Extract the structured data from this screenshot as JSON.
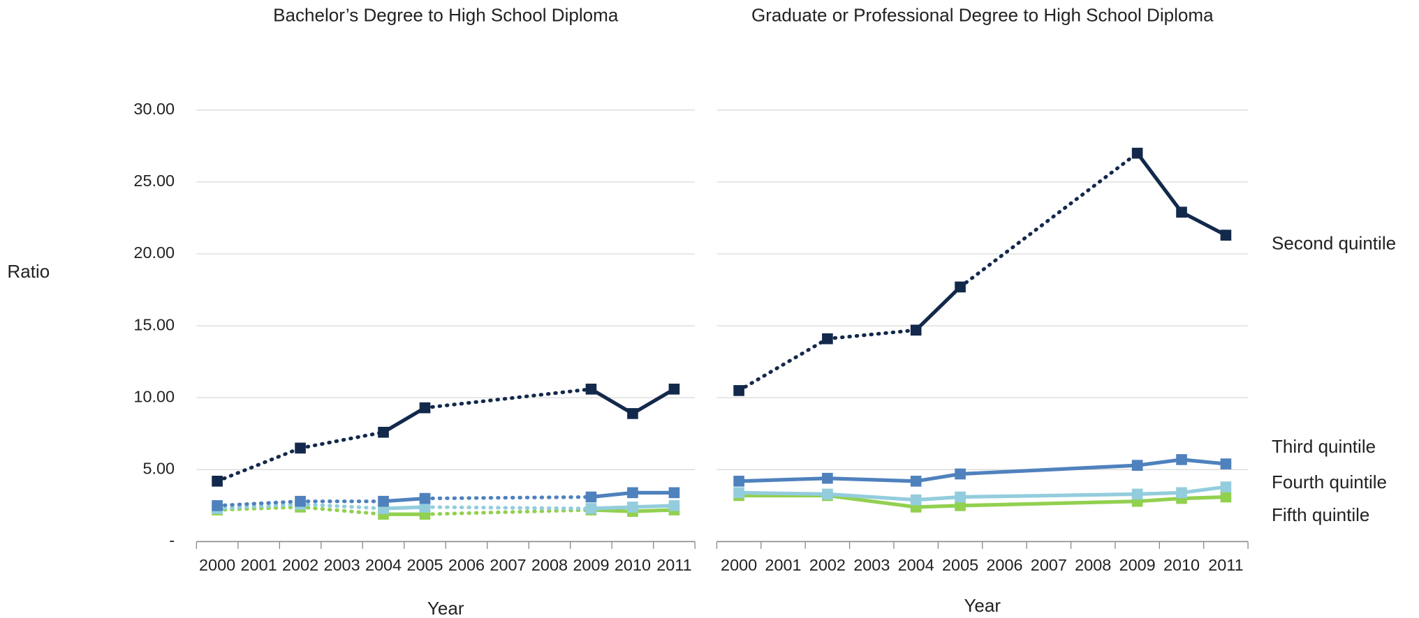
{
  "chart_data": [
    {
      "type": "line",
      "title": "Bachelor’s Degree to High School Diploma",
      "x_label": "Year",
      "y_label": "Ratio",
      "x": [
        2000,
        2002,
        2004,
        2005,
        2009,
        2010,
        2011
      ],
      "xlim": [
        1999.5,
        2011.5
      ],
      "xticks": [
        2000,
        2001,
        2002,
        2003,
        2004,
        2005,
        2006,
        2007,
        2008,
        2009,
        2010,
        2011
      ],
      "ylim": [
        0,
        30
      ],
      "yticks": [
        {
          "value": 0,
          "label": "-"
        },
        {
          "value": 5,
          "label": "5.00"
        },
        {
          "value": 10,
          "label": "10.00"
        },
        {
          "value": 15,
          "label": "15.00"
        },
        {
          "value": 20,
          "label": "20.00"
        },
        {
          "value": 25,
          "label": "25.00"
        },
        {
          "value": 30,
          "label": "30.00"
        }
      ],
      "grid": true,
      "gap_style": "dotted",
      "series": [
        {
          "color": "#13294b",
          "values": [
            4.2,
            6.5,
            7.6,
            9.3,
            10.6,
            8.9,
            10.6
          ]
        },
        {
          "color": "#4f81bd",
          "values": [
            2.5,
            2.8,
            2.8,
            3.0,
            3.1,
            3.4,
            3.4
          ]
        },
        {
          "color": "#93cddd",
          "values": [
            2.3,
            2.6,
            2.3,
            2.4,
            2.3,
            2.4,
            2.5
          ]
        },
        {
          "color": "#92d050",
          "values": [
            2.2,
            2.4,
            1.9,
            1.9,
            2.2,
            2.1,
            2.2
          ]
        }
      ]
    },
    {
      "type": "line",
      "title": "Graduate or Professional Degree to High School Diploma",
      "x_label": "Year",
      "x": [
        2000,
        2002,
        2004,
        2005,
        2009,
        2010,
        2011
      ],
      "xlim": [
        1999.5,
        2011.5
      ],
      "xticks": [
        2000,
        2001,
        2002,
        2003,
        2004,
        2005,
        2006,
        2007,
        2008,
        2009,
        2010,
        2011
      ],
      "ylim": [
        0,
        30
      ],
      "yticks": [
        0,
        5,
        10,
        15,
        20,
        25,
        30
      ],
      "grid": true,
      "series": [
        {
          "name": "Second quintile",
          "color": "#13294b",
          "gap_style": "dotted",
          "values": [
            10.5,
            14.1,
            14.7,
            17.7,
            27.0,
            22.9,
            21.3
          ]
        },
        {
          "name": "Third quintile",
          "color": "#4f81bd",
          "gap_style": "solid",
          "values": [
            4.2,
            4.4,
            4.2,
            4.7,
            5.3,
            5.7,
            5.4
          ]
        },
        {
          "name": "Fourth quintile",
          "color": "#93cddd",
          "gap_style": "solid",
          "values": [
            3.4,
            3.3,
            2.9,
            3.1,
            3.3,
            3.4,
            3.8
          ]
        },
        {
          "name": "Fifth quintile",
          "color": "#92d050",
          "gap_style": "solid",
          "values": [
            3.2,
            3.2,
            2.4,
            2.5,
            2.8,
            3.0,
            3.1
          ]
        }
      ]
    }
  ]
}
